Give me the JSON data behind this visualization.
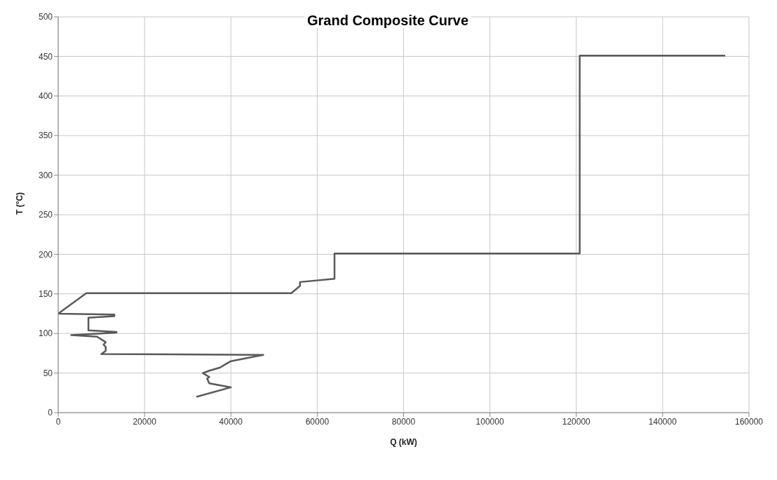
{
  "chart_data": {
    "type": "line",
    "title": "Grand Composite Curve",
    "xlabel": "Q (kW)",
    "ylabel": "T (°C)",
    "series": [
      {
        "color": "#595959",
        "x": [
          154500,
          120800,
          120800,
          64000,
          64000,
          56000,
          56000,
          54000,
          6500,
          0,
          13000,
          13000,
          7000,
          7000,
          13500,
          13500,
          3000,
          9000,
          11000,
          10500,
          11000,
          11000,
          10000,
          47500,
          40000,
          39000,
          37500,
          35000,
          33500,
          35000,
          34500,
          35000,
          40000,
          32000
        ],
        "values": [
          451,
          451,
          201,
          201,
          169,
          165,
          160,
          151,
          151,
          125,
          124,
          122,
          120,
          104,
          102,
          101,
          98,
          96,
          89,
          86,
          83,
          78,
          74,
          73,
          65,
          62,
          57,
          53,
          50,
          45,
          43,
          37,
          32,
          20
        ]
      }
    ],
    "xlim": [
      0,
      160000
    ],
    "xticks": [
      0,
      20000,
      40000,
      60000,
      80000,
      100000,
      120000,
      140000,
      160000
    ],
    "ylim": [
      0,
      500
    ],
    "yticks": [
      0,
      50,
      100,
      150,
      200,
      250,
      300,
      350,
      400,
      450,
      500
    ],
    "grid": true,
    "legend": false,
    "marker": "none",
    "line_style": "solid"
  }
}
